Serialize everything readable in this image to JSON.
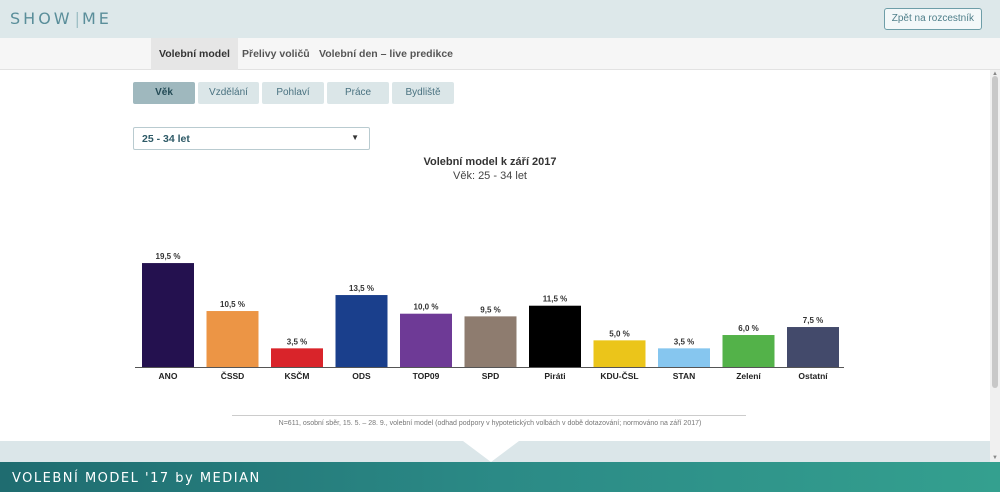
{
  "header": {
    "logo_left": "SHOW",
    "logo_right": "ME",
    "back_button": "Zpět na rozcestník"
  },
  "nav": {
    "tabs": [
      "Volební model",
      "Přelivy voličů",
      "Volební den – live predikce"
    ],
    "active": 0
  },
  "filters": {
    "items": [
      "Věk",
      "Vzdělání",
      "Pohlaví",
      "Práce",
      "Bydliště"
    ],
    "active": 0
  },
  "select": {
    "value": "25 - 34 let"
  },
  "chart_data": {
    "type": "bar",
    "title": "Volební model k září 2017",
    "subtitle": "Věk: 25 - 34 let",
    "categories": [
      "ANO",
      "ČSSD",
      "KSČM",
      "ODS",
      "TOP09",
      "SPD",
      "Piráti",
      "KDU-ČSL",
      "STAN",
      "Zelení",
      "Ostatní"
    ],
    "values": [
      19.5,
      10.5,
      3.5,
      13.5,
      10.0,
      9.5,
      11.5,
      5.0,
      3.5,
      6.0,
      7.5
    ],
    "labels": [
      "19,5 %",
      "10,5 %",
      "3,5 %",
      "13,5 %",
      "10,0 %",
      "9,5 %",
      "11,5 %",
      "5,0 %",
      "3,5 %",
      "6,0 %",
      "7,5 %"
    ],
    "colors": [
      "#24114f",
      "#ec9545",
      "#d9242a",
      "#1a3f8c",
      "#6e3a96",
      "#8e7c6f",
      "#000000",
      "#ebc51a",
      "#86c6ef",
      "#53b249",
      "#434a6b"
    ],
    "xlabel": "",
    "ylabel": "",
    "grid": false
  },
  "footnote": "N=611, osobní sběr, 15. 5. – 28. 9., volební model (odhad podpory v hypotetických volbách v době dotazování; normováno na září 2017)",
  "footer": {
    "title": "VOLEBNÍ MODEL '17 by MEDIAN"
  }
}
